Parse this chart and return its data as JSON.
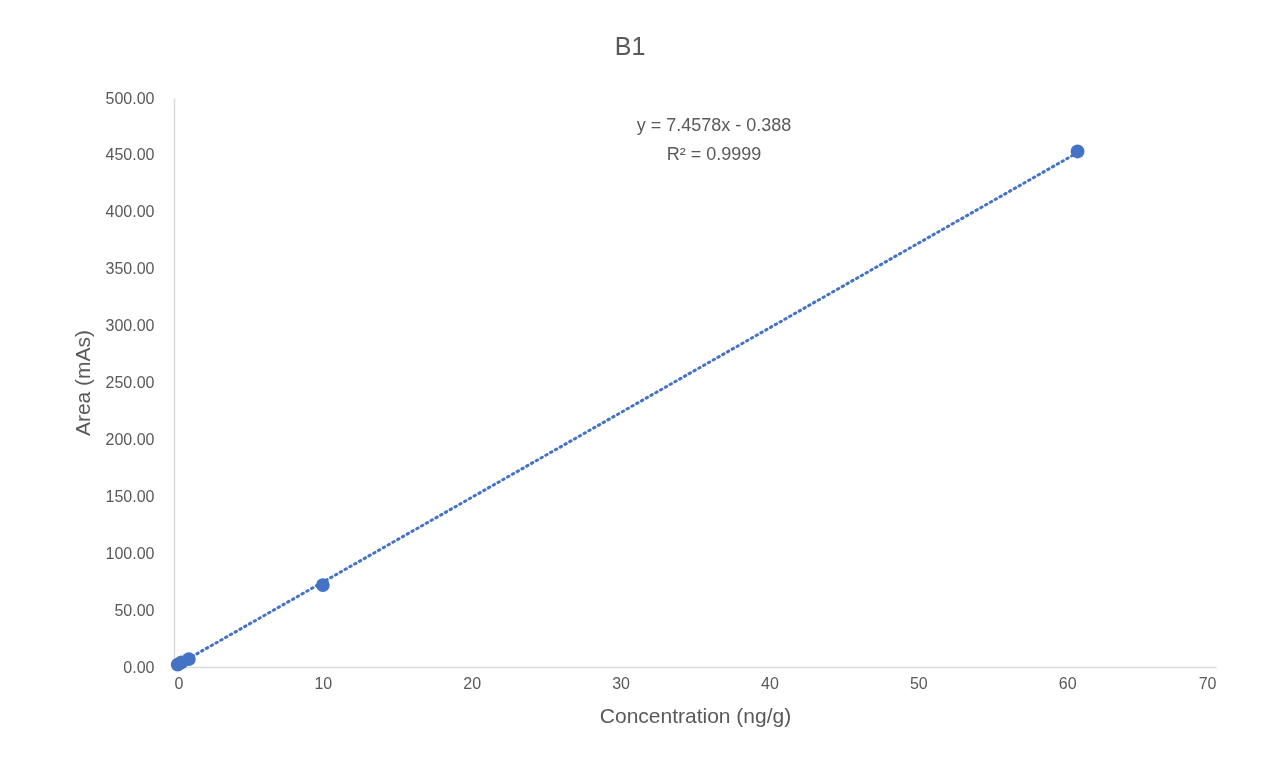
{
  "chart_data": {
    "type": "scatter",
    "title": "B1",
    "xlabel": "Concentration (ng/g)",
    "ylabel": "Area (mAs)",
    "xlim": [
      0,
      70
    ],
    "xticks": [
      0,
      10,
      20,
      30,
      40,
      50,
      60,
      70
    ],
    "ylim": [
      0,
      500
    ],
    "yticks": [
      {
        "value": 0,
        "label": "0.00"
      },
      {
        "value": 50,
        "label": "50.00"
      },
      {
        "value": 100,
        "label": "100.00"
      },
      {
        "value": 150,
        "label": "150.00"
      },
      {
        "value": 200,
        "label": "200.00"
      },
      {
        "value": 250,
        "label": "250.00"
      },
      {
        "value": 300,
        "label": "300.00"
      },
      {
        "value": 350,
        "label": "350.00"
      },
      {
        "value": 400,
        "label": "400.00"
      },
      {
        "value": 450,
        "label": "450.00"
      },
      {
        "value": 500,
        "label": "500.00"
      }
    ],
    "grid": false,
    "series": [
      {
        "type": "scatter",
        "color": "#4472c4",
        "marker": "circle",
        "x": [
          0.25,
          0.5,
          1,
          10,
          60.7
        ],
        "values": [
          2,
          4,
          7,
          72,
          453
        ]
      },
      {
        "type": "line",
        "color": "#4472c4",
        "line_style": "dotted",
        "x": [
          0.25,
          60.7
        ],
        "values": [
          2,
          452
        ]
      }
    ],
    "annotations": [
      "y = 7.4578x - 0.388",
      "R² = 0.9999"
    ]
  }
}
